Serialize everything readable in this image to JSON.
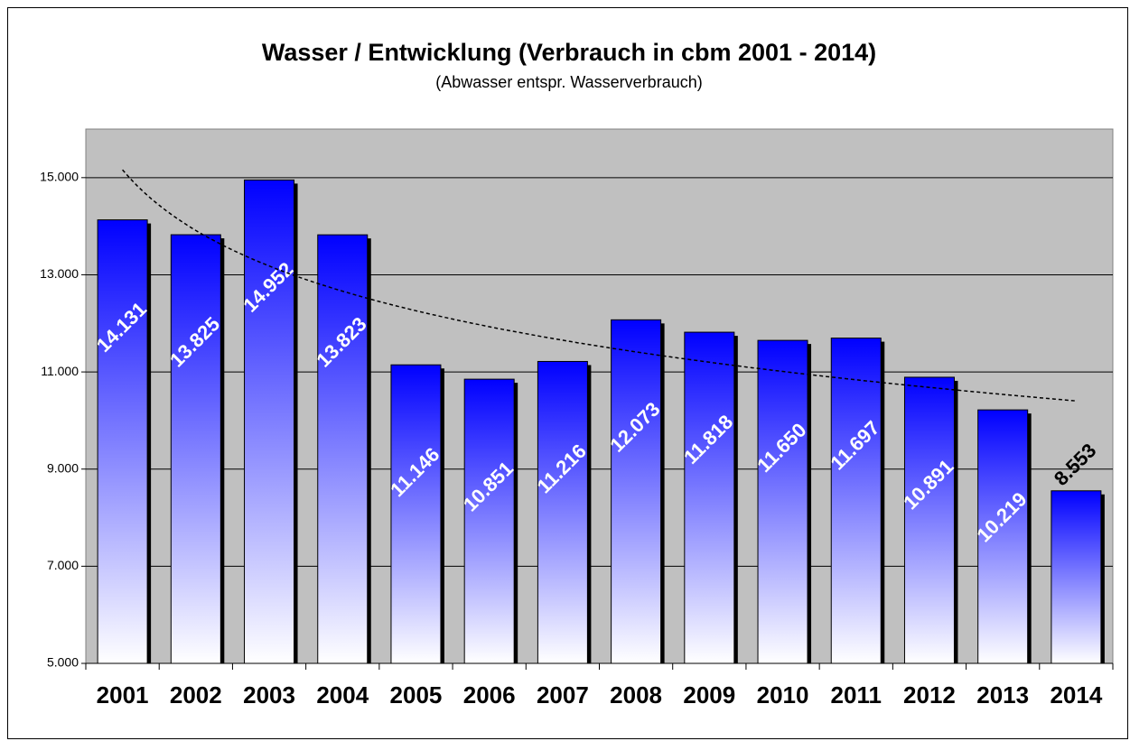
{
  "chart_data": {
    "type": "bar",
    "title": "Wasser / Entwicklung (Verbrauch in cbm 2001 - 2014)",
    "subtitle": "(Abwasser entspr. Wasserverbrauch)",
    "categories": [
      "2001",
      "2002",
      "2003",
      "2004",
      "2005",
      "2006",
      "2007",
      "2008",
      "2009",
      "2010",
      "2011",
      "2012",
      "2013",
      "2014"
    ],
    "values": [
      14131,
      13825,
      14952,
      13823,
      11146,
      10851,
      11216,
      12073,
      11818,
      11650,
      11697,
      10891,
      10219,
      8553
    ],
    "value_labels": [
      "14.131",
      "13.825",
      "14.952",
      "13.823",
      "11.146",
      "10.851",
      "11.216",
      "12.073",
      "11.818",
      "11.650",
      "11.697",
      "10.891",
      "10.219",
      "8.553"
    ],
    "color": "#0000ff",
    "ylim": [
      5000,
      16000
    ],
    "yticks": [
      {
        "value": 5000,
        "label": "5.000"
      },
      {
        "value": 7000,
        "label": "7.000"
      },
      {
        "value": 9000,
        "label": "9.000"
      },
      {
        "value": 11000,
        "label": "11.000"
      },
      {
        "value": 13000,
        "label": "13.000"
      },
      {
        "value": 15000,
        "label": "15.000"
      }
    ],
    "grid": true,
    "trendline": "logarithmic"
  }
}
